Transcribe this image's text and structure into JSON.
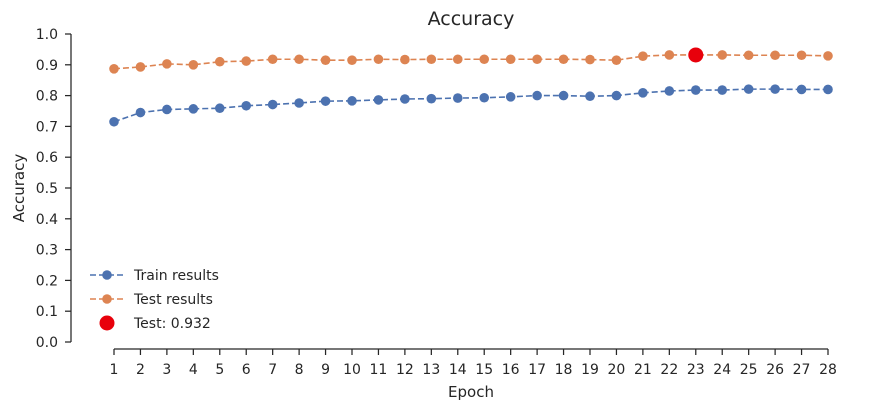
{
  "chart_data": {
    "type": "line",
    "title": "Accuracy",
    "xlabel": "Epoch",
    "ylabel": "Accuracy",
    "ylim": [
      0.0,
      1.0
    ],
    "yticks": [
      "0.0",
      "0.1",
      "0.2",
      "0.3",
      "0.4",
      "0.5",
      "0.6",
      "0.7",
      "0.8",
      "0.9",
      "1.0"
    ],
    "x": [
      1,
      2,
      3,
      4,
      5,
      6,
      7,
      8,
      9,
      10,
      11,
      12,
      13,
      14,
      15,
      16,
      17,
      18,
      19,
      20,
      21,
      22,
      23,
      24,
      25,
      26,
      27,
      28
    ],
    "series": [
      {
        "name": "Train results",
        "color": "#4c72b0",
        "values": [
          0.715,
          0.745,
          0.755,
          0.757,
          0.759,
          0.767,
          0.771,
          0.776,
          0.782,
          0.783,
          0.786,
          0.789,
          0.79,
          0.792,
          0.793,
          0.796,
          0.8,
          0.8,
          0.798,
          0.8,
          0.809,
          0.815,
          0.818,
          0.818,
          0.821,
          0.821,
          0.82,
          0.82
        ]
      },
      {
        "name": "Test results",
        "color": "#dd8452",
        "values": [
          0.887,
          0.893,
          0.903,
          0.9,
          0.91,
          0.912,
          0.918,
          0.918,
          0.915,
          0.915,
          0.918,
          0.917,
          0.918,
          0.918,
          0.918,
          0.918,
          0.918,
          0.918,
          0.917,
          0.915,
          0.928,
          0.932,
          0.932,
          0.932,
          0.931,
          0.931,
          0.931,
          0.929
        ]
      }
    ],
    "highlight": {
      "name": "Test: 0.932",
      "x": 23,
      "y": 0.932,
      "color": "#e8000b"
    },
    "legend_position": "lower-left",
    "grid": false
  }
}
